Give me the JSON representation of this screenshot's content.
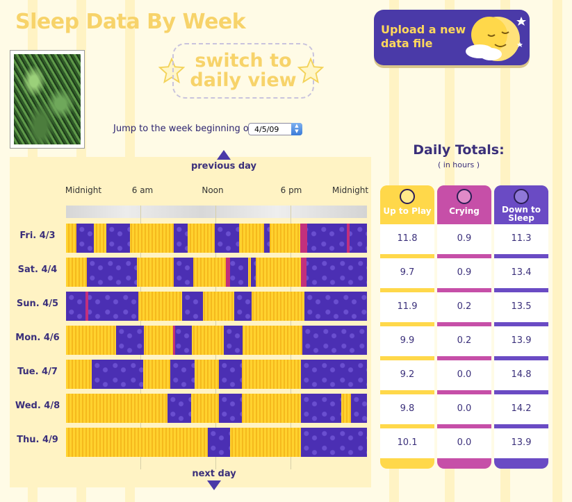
{
  "header": {
    "title": "Sleep Data By Week"
  },
  "switch_view": {
    "label_line1": "switch to",
    "label_line2": "daily view"
  },
  "upload": {
    "label_line1": "Upload a new",
    "label_line2": "data file"
  },
  "jump": {
    "label": "Jump to the week beginning on",
    "date_value": "4/5/09"
  },
  "nav": {
    "previous": "previous day",
    "next": "next day"
  },
  "time_axis": [
    "Midnight",
    "6 am",
    "Noon",
    "6 pm",
    "Midnight"
  ],
  "totals": {
    "title": "Daily Totals:",
    "subtitle": "( in hours )",
    "columns": [
      {
        "label_line1": "Up to Play",
        "label_line2": "",
        "color": "#ffd84a"
      },
      {
        "label_line1": "Crying",
        "label_line2": "",
        "color": "#c64fa8"
      },
      {
        "label_line1": "Down to",
        "label_line2": "Sleep",
        "color": "#6a4bc4"
      }
    ]
  },
  "days": [
    {
      "label": "Fri. 4/3",
      "up": "11.8",
      "crying": "0.9",
      "sleep": "11.3"
    },
    {
      "label": "Sat. 4/4",
      "up": "9.7",
      "crying": "0.9",
      "sleep": "13.4"
    },
    {
      "label": "Sun. 4/5",
      "up": "11.9",
      "crying": "0.2",
      "sleep": "13.5"
    },
    {
      "label": "Mon. 4/6",
      "up": "9.9",
      "crying": "0.2",
      "sleep": "13.9"
    },
    {
      "label": "Tue. 4/7",
      "up": "9.2",
      "crying": "0.0",
      "sleep": "14.8"
    },
    {
      "label": "Wed. 4/8",
      "up": "9.8",
      "crying": "0.0",
      "sleep": "14.2"
    },
    {
      "label": "Thu. 4/9",
      "up": "10.1",
      "crying": "0.0",
      "sleep": "13.9"
    }
  ],
  "colors": {
    "awake": "#ffd22e",
    "sleep": "#4b2fb3",
    "crying": "#c2307c",
    "title": "#f7d36a"
  }
}
